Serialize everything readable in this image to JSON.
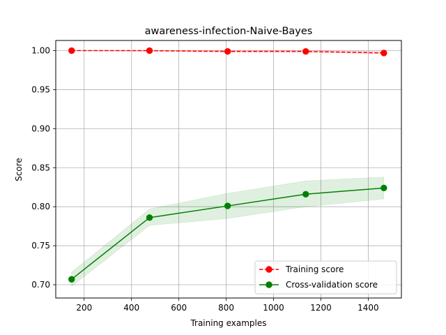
{
  "chart_data": {
    "type": "line",
    "title": "awareness-infection-Naive-Bayes",
    "xlabel": "Training examples",
    "ylabel": "Score",
    "xlim": [
      80,
      1540
    ],
    "ylim": [
      0.683,
      1.013
    ],
    "xticks": [
      200,
      400,
      600,
      800,
      1000,
      1200,
      1400
    ],
    "xtick_labels": [
      "200",
      "400",
      "600",
      "800",
      "1000",
      "1200",
      "1400"
    ],
    "yticks": [
      0.7,
      0.75,
      0.8,
      0.85,
      0.9,
      0.95,
      1.0
    ],
    "ytick_labels": [
      "0.70",
      "0.75",
      "0.80",
      "0.85",
      "0.90",
      "0.95",
      "1.00"
    ],
    "grid": true,
    "legend_position": "lower-right",
    "x": [
      147,
      476,
      806,
      1136,
      1466
    ],
    "series": [
      {
        "name": "Training score",
        "values": [
          1.0,
          1.0,
          0.999,
          0.999,
          0.997
        ],
        "band_low": [
          1.0,
          0.999,
          0.998,
          0.998,
          0.996
        ],
        "band_high": [
          1.0,
          1.0,
          1.0,
          1.0,
          0.999
        ],
        "color": "#ff0000",
        "style": "dashed"
      },
      {
        "name": "Cross-validation score",
        "values": [
          0.707,
          0.786,
          0.801,
          0.816,
          0.824
        ],
        "band_low": [
          0.698,
          0.776,
          0.785,
          0.8,
          0.81
        ],
        "band_high": [
          0.716,
          0.797,
          0.817,
          0.833,
          0.838
        ],
        "color": "#008000",
        "band_color": "#008000",
        "style": "solid"
      }
    ]
  }
}
